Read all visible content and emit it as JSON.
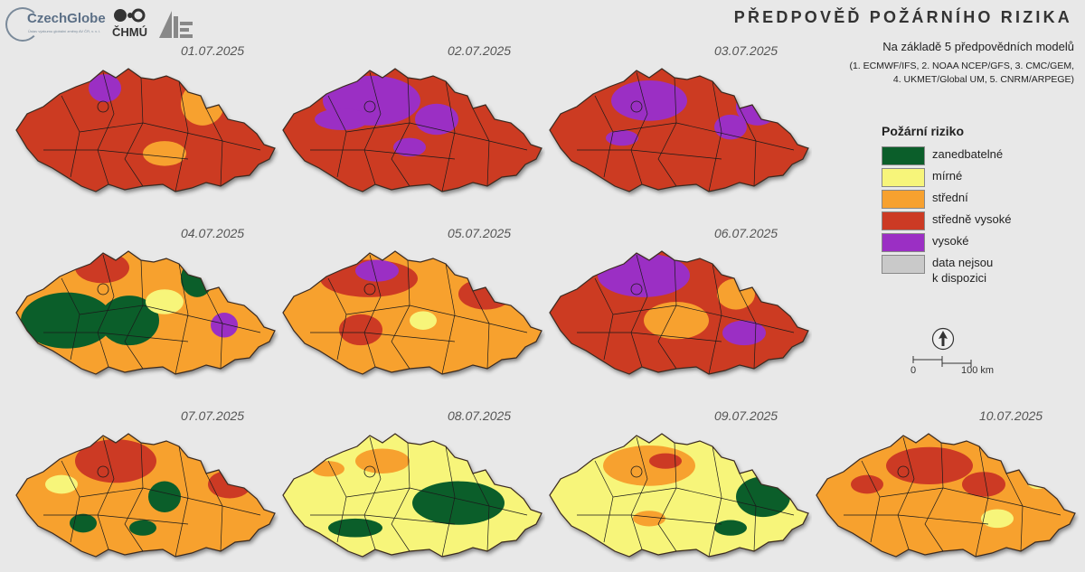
{
  "header": {
    "title": "PŘEDPOVĚĎ POŽÁRNÍHO RIZIKA",
    "subtitle": "Na základě 5 předpovědních modelů",
    "models_line1": "(1. ECMWF/IFS, 2. NOAA NCEP/GFS, 3. CMC/GEM,",
    "models_line2": "4. UKMET/Global UM, 5. CNRM/ARPEGE)"
  },
  "logos": {
    "czechglobe": "CzechGlobe",
    "czechglobe_sub": "Ústav výzkumu globální změny AV ČR, v. v. i.",
    "chmu": "ČHMÚ"
  },
  "colors": {
    "zanedbatelne": "#0b5e2a",
    "mirne": "#f7f57a",
    "stredni": "#f7a12f",
    "stredne_vysoke": "#cc3a24",
    "vysoke": "#9b2fc4",
    "no_data": "#c9c9c9"
  },
  "maps": [
    {
      "date": "01.07.2025",
      "base": "stredne_vysoke",
      "patches": [
        [
          "vysoke",
          0.36,
          0.3,
          0.06,
          0.09
        ],
        [
          "stredni",
          0.72,
          0.4,
          0.08,
          0.14
        ],
        [
          "stredni",
          0.58,
          0.72,
          0.08,
          0.08
        ]
      ]
    },
    {
      "date": "02.07.2025",
      "base": "stredne_vysoke",
      "patches": [
        [
          "vysoke",
          0.36,
          0.38,
          0.18,
          0.16
        ],
        [
          "vysoke",
          0.25,
          0.5,
          0.1,
          0.07
        ],
        [
          "vysoke",
          0.6,
          0.5,
          0.08,
          0.1
        ],
        [
          "vysoke",
          0.5,
          0.68,
          0.06,
          0.06
        ]
      ]
    },
    {
      "date": "03.07.2025",
      "base": "stredne_vysoke",
      "patches": [
        [
          "vysoke",
          0.4,
          0.38,
          0.14,
          0.13
        ],
        [
          "vysoke",
          0.8,
          0.42,
          0.08,
          0.12
        ],
        [
          "vysoke",
          0.7,
          0.55,
          0.06,
          0.08
        ],
        [
          "vysoke",
          0.3,
          0.62,
          0.06,
          0.05
        ]
      ]
    },
    {
      "date": "04.07.2025",
      "base": "stredni",
      "patches": [
        [
          "zanedbatelne",
          0.22,
          0.62,
          0.17,
          0.18
        ],
        [
          "zanedbatelne",
          0.45,
          0.62,
          0.11,
          0.16
        ],
        [
          "zanedbatelne",
          0.7,
          0.35,
          0.06,
          0.12
        ],
        [
          "stredne_vysoke",
          0.35,
          0.28,
          0.1,
          0.1
        ],
        [
          "mirne",
          0.58,
          0.5,
          0.07,
          0.08
        ],
        [
          "vysoke",
          0.8,
          0.65,
          0.05,
          0.08
        ]
      ]
    },
    {
      "date": "05.07.2025",
      "base": "stredni",
      "patches": [
        [
          "stredne_vysoke",
          0.35,
          0.35,
          0.18,
          0.12
        ],
        [
          "vysoke",
          0.38,
          0.3,
          0.08,
          0.07
        ],
        [
          "stredne_vysoke",
          0.78,
          0.45,
          0.1,
          0.1
        ],
        [
          "stredne_vysoke",
          0.32,
          0.68,
          0.08,
          0.1
        ],
        [
          "mirne",
          0.55,
          0.62,
          0.05,
          0.06
        ]
      ]
    },
    {
      "date": "06.07.2025",
      "base": "stredne_vysoke",
      "patches": [
        [
          "vysoke",
          0.38,
          0.33,
          0.17,
          0.14
        ],
        [
          "stredni",
          0.5,
          0.62,
          0.12,
          0.12
        ],
        [
          "stredni",
          0.72,
          0.45,
          0.07,
          0.1
        ],
        [
          "vysoke",
          0.75,
          0.7,
          0.08,
          0.08
        ]
      ]
    },
    {
      "date": "07.07.2025",
      "base": "stredni",
      "patches": [
        [
          "stredne_vysoke",
          0.4,
          0.35,
          0.15,
          0.14
        ],
        [
          "zanedbatelne",
          0.58,
          0.58,
          0.06,
          0.1
        ],
        [
          "zanedbatelne",
          0.28,
          0.75,
          0.05,
          0.06
        ],
        [
          "mirne",
          0.2,
          0.5,
          0.06,
          0.06
        ],
        [
          "stredne_vysoke",
          0.82,
          0.5,
          0.08,
          0.09
        ],
        [
          "zanedbatelne",
          0.5,
          0.78,
          0.05,
          0.05
        ]
      ]
    },
    {
      "date": "08.07.2025",
      "base": "mirne",
      "patches": [
        [
          "zanedbatelne",
          0.68,
          0.62,
          0.17,
          0.14
        ],
        [
          "zanedbatelne",
          0.3,
          0.78,
          0.1,
          0.06
        ],
        [
          "zanedbatelne",
          0.8,
          0.3,
          0.06,
          0.08
        ],
        [
          "stredni",
          0.4,
          0.35,
          0.1,
          0.08
        ],
        [
          "stredni",
          0.2,
          0.4,
          0.06,
          0.05
        ]
      ]
    },
    {
      "date": "09.07.2025",
      "base": "mirne",
      "patches": [
        [
          "stredni",
          0.4,
          0.38,
          0.17,
          0.13
        ],
        [
          "stredne_vysoke",
          0.46,
          0.35,
          0.06,
          0.05
        ],
        [
          "zanedbatelne",
          0.82,
          0.58,
          0.1,
          0.13
        ],
        [
          "zanedbatelne",
          0.7,
          0.78,
          0.06,
          0.05
        ],
        [
          "stredni",
          0.4,
          0.72,
          0.06,
          0.05
        ]
      ]
    },
    {
      "date": "10.07.2025",
      "base": "stredni",
      "patches": [
        [
          "stredne_vysoke",
          0.45,
          0.38,
          0.16,
          0.12
        ],
        [
          "stredne_vysoke",
          0.65,
          0.5,
          0.08,
          0.08
        ],
        [
          "stredne_vysoke",
          0.22,
          0.5,
          0.06,
          0.06
        ],
        [
          "mirne",
          0.85,
          0.45,
          0.05,
          0.08
        ],
        [
          "mirne",
          0.7,
          0.72,
          0.06,
          0.06
        ]
      ]
    }
  ],
  "legend": {
    "title": "Požární riziko",
    "items": [
      {
        "key": "zanedbatelne",
        "label": "zanedbatelné",
        "label2": ""
      },
      {
        "key": "mirne",
        "label": "mírné",
        "label2": ""
      },
      {
        "key": "stredni",
        "label": "střední",
        "label2": ""
      },
      {
        "key": "stredne_vysoke",
        "label": "středně vysoké",
        "label2": ""
      },
      {
        "key": "vysoke",
        "label": "vysoké",
        "label2": ""
      },
      {
        "key": "no_data",
        "label": "data nejsou",
        "label2": "k dispozici"
      }
    ]
  },
  "scale_bar": {
    "start": "0",
    "end": "100 km"
  },
  "north_arrow": {
    "icon": "north-arrow-icon"
  }
}
